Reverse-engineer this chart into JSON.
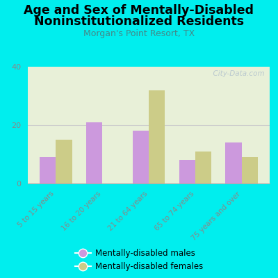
{
  "title_line1": "Age and Sex of Mentally-Disabled",
  "title_line2": "Noninstitutionalized Residents",
  "subtitle": "Morgan's Point Resort, TX",
  "categories": [
    "5 to 15 years",
    "16 to 20 years",
    "21 to 64 years",
    "65 to 74 years",
    "75 years and over"
  ],
  "males": [
    9,
    21,
    18,
    8,
    14
  ],
  "females": [
    15,
    0,
    32,
    11,
    9
  ],
  "male_color": "#cc99dd",
  "female_color": "#cccc88",
  "background_color": "#00eeee",
  "plot_bg_color": "#e8f0d8",
  "ylim": [
    0,
    40
  ],
  "yticks": [
    0,
    20,
    40
  ],
  "watermark": "  City-Data.com",
  "legend_male": "Mentally-disabled males",
  "legend_female": "Mentally-disabled females",
  "title_fontsize": 12.5,
  "subtitle_fontsize": 9,
  "subtitle_color": "#448888",
  "tick_label_color": "#888888",
  "ytick_color": "#888888",
  "grid_color": "#cccccc",
  "bar_width": 0.35
}
